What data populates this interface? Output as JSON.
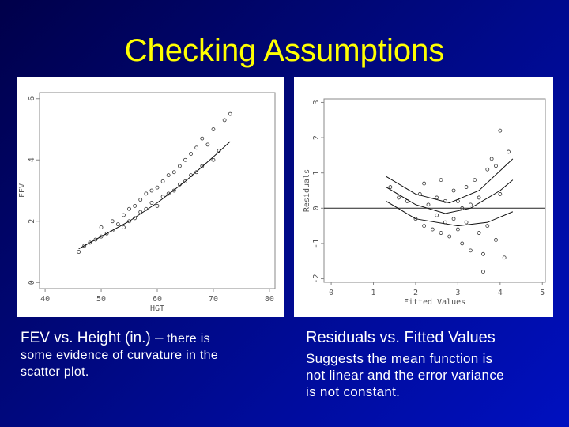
{
  "title": "Checking Assumptions",
  "chart_data": [
    {
      "type": "scatter",
      "xlabel": "HGT",
      "ylabel": "FEV",
      "xlim": [
        39,
        81
      ],
      "ylim": [
        -0.2,
        6.2
      ],
      "xticks": [
        40,
        50,
        60,
        70,
        80
      ],
      "yticks": [
        0,
        2,
        4,
        6
      ],
      "color": "#333333",
      "x": [
        46,
        47,
        48,
        49,
        50,
        50,
        51,
        52,
        52,
        53,
        54,
        54,
        55,
        55,
        56,
        56,
        57,
        57,
        58,
        58,
        59,
        59,
        60,
        60,
        61,
        61,
        62,
        62,
        63,
        63,
        64,
        64,
        65,
        65,
        66,
        66,
        67,
        67,
        68,
        68,
        69,
        70,
        70,
        71,
        72,
        73
      ],
      "values": [
        1.0,
        1.2,
        1.3,
        1.4,
        1.5,
        1.8,
        1.6,
        1.7,
        2.0,
        1.9,
        1.8,
        2.2,
        2.0,
        2.4,
        2.1,
        2.5,
        2.3,
        2.7,
        2.4,
        2.9,
        2.6,
        3.0,
        2.5,
        3.1,
        2.8,
        3.3,
        2.9,
        3.5,
        3.0,
        3.6,
        3.2,
        3.8,
        3.3,
        4.0,
        3.5,
        4.2,
        3.6,
        4.4,
        3.8,
        4.7,
        4.5,
        4.0,
        5.0,
        4.3,
        5.3,
        5.5
      ],
      "lines": [
        {
          "x": [
            46,
            50,
            55,
            60,
            65,
            70,
            73
          ],
          "values": [
            1.1,
            1.5,
            2.0,
            2.6,
            3.3,
            4.1,
            4.6
          ]
        }
      ]
    },
    {
      "type": "scatter",
      "xlabel": "Fitted Values",
      "ylabel": "Residuals",
      "xlim": [
        -0.17,
        5.07
      ],
      "ylim": [
        -2.1,
        3.1
      ],
      "xticks": [
        0,
        1,
        2,
        3,
        4,
        5
      ],
      "yticks": [
        {
          "value": -2,
          "label": "-2"
        },
        {
          "value": -1,
          "label": "-1"
        },
        0,
        1,
        2,
        3
      ],
      "hline": 0,
      "color": "#333333",
      "x": [
        1.4,
        1.6,
        1.8,
        2.0,
        2.1,
        2.2,
        2.3,
        2.4,
        2.5,
        2.5,
        2.6,
        2.7,
        2.7,
        2.8,
        2.9,
        2.9,
        3.0,
        3.0,
        3.1,
        3.2,
        3.2,
        3.3,
        3.3,
        3.4,
        3.5,
        3.5,
        3.6,
        3.7,
        3.7,
        3.8,
        3.9,
        4.0,
        4.0,
        4.1,
        4.2,
        2.2,
        2.6,
        3.1,
        3.6,
        3.9
      ],
      "values": [
        0.6,
        0.3,
        0.2,
        -0.3,
        0.4,
        -0.5,
        0.1,
        -0.6,
        0.3,
        -0.2,
        -0.7,
        0.2,
        -0.4,
        -0.8,
        0.5,
        -0.3,
        -0.6,
        0.2,
        -1.0,
        0.6,
        -0.4,
        0.1,
        -1.2,
        0.8,
        -0.7,
        0.3,
        -1.3,
        1.1,
        -0.5,
        1.4,
        -0.9,
        2.2,
        0.4,
        -1.4,
        1.6,
        0.7,
        0.8,
        0.0,
        -1.8,
        1.2
      ],
      "lines": [
        {
          "x": [
            1.3,
            2.0,
            2.7,
            3.3,
            4.0,
            4.3
          ],
          "values": [
            0.6,
            0.1,
            -0.15,
            0.0,
            0.5,
            0.8
          ]
        },
        {
          "x": [
            1.3,
            2.0,
            2.8,
            3.5,
            4.3
          ],
          "values": [
            0.9,
            0.4,
            0.15,
            0.5,
            1.4
          ]
        },
        {
          "x": [
            1.3,
            2.0,
            3.0,
            3.7,
            4.3
          ],
          "values": [
            0.2,
            -0.3,
            -0.5,
            -0.4,
            -0.1
          ]
        }
      ]
    }
  ],
  "captions": [
    {
      "heading": "FEV vs. Height (in.) –",
      "lines": [
        "there is",
        "some evidence of curvature in the",
        "scatter plot."
      ]
    },
    {
      "heading": "Residuals vs. Fitted Values",
      "lines": [
        "Suggests the mean function is",
        "not linear and the error variance",
        "is not constant."
      ]
    }
  ]
}
